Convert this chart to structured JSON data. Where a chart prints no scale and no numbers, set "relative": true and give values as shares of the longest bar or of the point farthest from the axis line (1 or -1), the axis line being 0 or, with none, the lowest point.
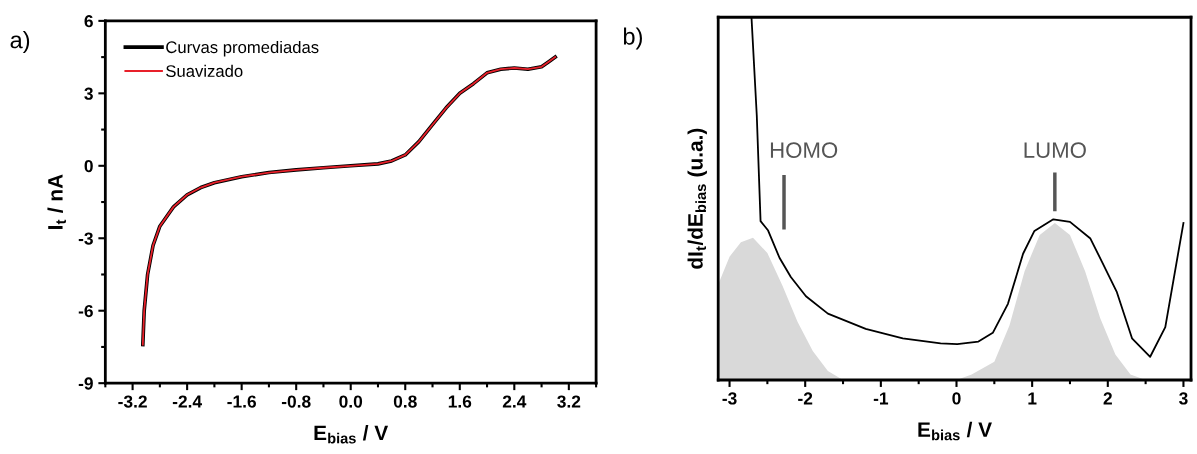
{
  "chart_data": [
    {
      "type": "line",
      "xlabel": "E$_{bias}$ / V",
      "ylabel": "I$_{t}$ / nA",
      "annotations": [
        "a)"
      ],
      "xlim": [
        -3.6,
        3.6
      ],
      "xticks": [
        -3.2,
        -2.4,
        -1.6,
        -0.8,
        {
          "value": 0,
          "label": "0.0"
        },
        0.8,
        1.6,
        2.4,
        3.2
      ],
      "ylim": [
        -9,
        6
      ],
      "yticks": [
        -9,
        -6,
        -3,
        0,
        3,
        6
      ],
      "legend": "top left",
      "grid": false,
      "x": [
        -3.05,
        -3.03,
        -2.98,
        -2.9,
        -2.8,
        -2.6,
        -2.4,
        -2.2,
        -2.0,
        -1.6,
        -1.2,
        -0.8,
        -0.4,
        0,
        0.4,
        0.6,
        0.8,
        1.0,
        1.2,
        1.4,
        1.6,
        1.8,
        2.0,
        2.2,
        2.4,
        2.6,
        2.8,
        2.9,
        3.0
      ],
      "series": [
        {
          "name": "Curvas promediadas",
          "color": "#000000",
          "values": [
            -7.4,
            -6.0,
            -4.5,
            -3.3,
            -2.5,
            -1.7,
            -1.2,
            -0.9,
            -0.7,
            -0.45,
            -0.28,
            -0.17,
            -0.08,
            0,
            0.08,
            0.2,
            0.45,
            1.0,
            1.7,
            2.4,
            3.0,
            3.4,
            3.85,
            4.0,
            4.05,
            4.0,
            4.1,
            4.3,
            4.5
          ]
        },
        {
          "name": "Suavizado",
          "color": "#e8202a",
          "values": [
            -7.4,
            -6.0,
            -4.5,
            -3.3,
            -2.5,
            -1.7,
            -1.2,
            -0.9,
            -0.7,
            -0.45,
            -0.28,
            -0.17,
            -0.08,
            0,
            0.08,
            0.2,
            0.45,
            1.0,
            1.7,
            2.4,
            3.0,
            3.4,
            3.85,
            4.0,
            4.05,
            4.0,
            4.1,
            4.3,
            4.5
          ]
        }
      ]
    },
    {
      "type": "line",
      "xlabel": "E$_{bias}$ / V",
      "ylabel": "dI$_{t}$/dE$_{bias}$ (u.a.)",
      "relative": true,
      "tick_labels": "x",
      "grid": false,
      "annotations": [
        "b)",
        "HOMO",
        "LUMO"
      ],
      "xlim": [
        -3.15,
        3.1
      ],
      "xticks": [
        -3,
        -2,
        -1,
        0,
        1,
        2,
        3
      ],
      "series": [
        {
          "type": "area",
          "color": "#d9d9d9",
          "x": [
            -3.15,
            -3.0,
            -2.85,
            -2.69,
            -2.5,
            -2.3,
            -2.1,
            -1.9,
            -1.7,
            -1.5,
            0.0,
            0.2,
            0.5,
            0.7,
            0.9,
            1.1,
            1.3,
            1.5,
            1.7,
            1.9,
            2.1,
            2.3,
            2.5
          ],
          "values": [
            0.263,
            0.34,
            0.38,
            0.392,
            0.35,
            0.26,
            0.16,
            0.08,
            0.025,
            0,
            0,
            0.015,
            0.05,
            0.15,
            0.3,
            0.4,
            0.433,
            0.4,
            0.3,
            0.17,
            0.07,
            0.015,
            0
          ]
        },
        {
          "type": "line",
          "color": "#000000",
          "x": [
            -2.71,
            -2.64,
            -2.59,
            -2.49,
            -2.34,
            -2.19,
            -1.99,
            -1.7,
            -1.2,
            -0.71,
            -0.21,
            0.01,
            0.29,
            0.48,
            0.68,
            0.88,
            1.03,
            1.28,
            1.5,
            1.77,
            1.92,
            2.12,
            2.32,
            2.56,
            2.76,
            3.0
          ],
          "values": [
            1.0,
            0.729,
            0.438,
            0.412,
            0.337,
            0.284,
            0.231,
            0.183,
            0.141,
            0.115,
            0.101,
            0.099,
            0.106,
            0.13,
            0.21,
            0.348,
            0.411,
            0.443,
            0.436,
            0.39,
            0.327,
            0.242,
            0.115,
            0.064,
            0.146,
            0.433
          ]
        }
      ]
    }
  ]
}
